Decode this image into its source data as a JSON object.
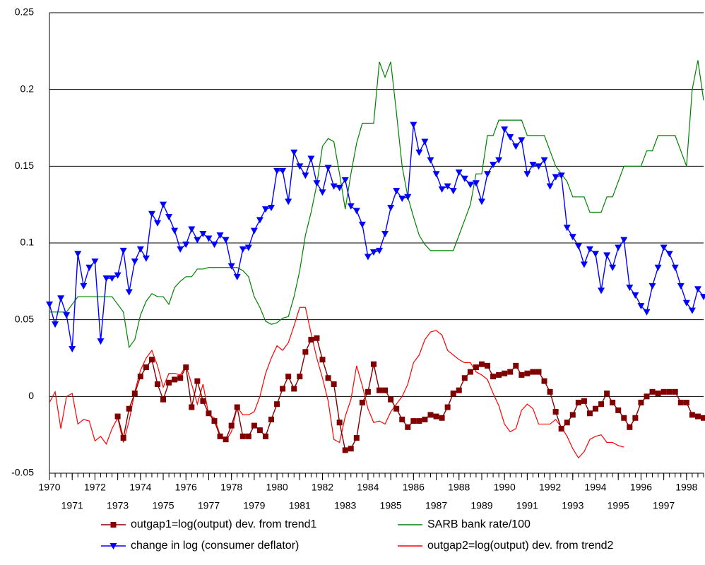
{
  "chart_data": {
    "type": "line",
    "x": [
      1970,
      1970.25,
      1970.5,
      1970.75,
      1971,
      1971.25,
      1971.5,
      1971.75,
      1972,
      1972.25,
      1972.5,
      1972.75,
      1973,
      1973.25,
      1973.5,
      1973.75,
      1974,
      1974.25,
      1974.5,
      1974.75,
      1975,
      1975.25,
      1975.5,
      1975.75,
      1976,
      1976.25,
      1976.5,
      1976.75,
      1977,
      1977.25,
      1977.5,
      1977.75,
      1978,
      1978.25,
      1978.5,
      1978.75,
      1979,
      1979.25,
      1979.5,
      1979.75,
      1980,
      1980.25,
      1980.5,
      1980.75,
      1981,
      1981.25,
      1981.5,
      1981.75,
      1982,
      1982.25,
      1982.5,
      1982.75,
      1983,
      1983.25,
      1983.5,
      1983.75,
      1984,
      1984.25,
      1984.5,
      1984.75,
      1985,
      1985.25,
      1985.5,
      1985.75,
      1986,
      1986.25,
      1986.5,
      1986.75,
      1987,
      1987.25,
      1987.5,
      1987.75,
      1988,
      1988.25,
      1988.5,
      1988.75,
      1989,
      1989.25,
      1989.5,
      1989.75,
      1990,
      1990.25,
      1990.5,
      1990.75,
      1991,
      1991.25,
      1991.5,
      1991.75,
      1992,
      1992.25,
      1992.5,
      1992.75,
      1993,
      1993.25,
      1993.5,
      1993.75,
      1994,
      1994.25,
      1994.5,
      1994.75,
      1995,
      1995.25,
      1995.5,
      1995.75,
      1996,
      1996.25,
      1996.5,
      1996.75,
      1997,
      1997.25,
      1997.5,
      1997.75,
      1998,
      1998.25,
      1998.5,
      1998.75
    ],
    "xlim": [
      1970,
      1998.75
    ],
    "xticks": [
      1970,
      1971,
      1972,
      1973,
      1974,
      1975,
      1976,
      1977,
      1978,
      1979,
      1980,
      1981,
      1982,
      1983,
      1984,
      1985,
      1986,
      1987,
      1988,
      1989,
      1990,
      1991,
      1992,
      1993,
      1994,
      1995,
      1996,
      1997,
      1998
    ],
    "ylim": [
      -0.05,
      0.25
    ],
    "yticks": [
      -0.05,
      0,
      0.05,
      0.1,
      0.15,
      0.2,
      0.25
    ],
    "grid": true,
    "series": [
      {
        "name": "outgap1=log(output) dev. from trend1",
        "color": "#800000",
        "marker": "square",
        "values": [
          null,
          null,
          null,
          null,
          null,
          null,
          null,
          null,
          null,
          null,
          null,
          null,
          -0.013,
          -0.027,
          -0.008,
          0.002,
          0.013,
          0.019,
          0.024,
          0.008,
          -0.002,
          0.009,
          0.011,
          0.012,
          0.019,
          -0.007,
          0.01,
          -0.003,
          -0.011,
          -0.016,
          -0.026,
          -0.028,
          -0.019,
          -0.007,
          -0.026,
          -0.026,
          -0.019,
          -0.022,
          -0.026,
          -0.015,
          -0.005,
          0.005,
          0.013,
          0.005,
          0.013,
          0.029,
          0.037,
          0.038,
          0.024,
          0.012,
          0.008,
          -0.017,
          -0.035,
          -0.034,
          -0.027,
          -0.004,
          0.003,
          0.021,
          0.004,
          0.004,
          -0.002,
          -0.008,
          -0.015,
          -0.02,
          -0.016,
          -0.016,
          -0.015,
          -0.012,
          -0.013,
          -0.014,
          -0.007,
          0.002,
          0.004,
          0.012,
          0.016,
          0.019,
          0.021,
          0.02,
          0.013,
          0.014,
          0.015,
          0.016,
          0.02,
          0.014,
          0.015,
          0.016,
          0.016,
          0.01,
          0.003,
          -0.01,
          -0.021,
          -0.017,
          -0.012,
          -0.004,
          -0.003,
          -0.011,
          -0.008,
          -0.005,
          0.002,
          -0.004,
          -0.009,
          -0.014,
          -0.02,
          -0.014,
          -0.004,
          0,
          0.003,
          0.002,
          0.003,
          0.003,
          0.003,
          -0.004,
          -0.004,
          -0.012,
          -0.013,
          -0.014
        ]
      },
      {
        "name": "SARB bank rate/100",
        "color": "#008000",
        "marker": "none",
        "values": [
          0.055,
          0.055,
          0.055,
          0.055,
          0.06,
          0.065,
          0.065,
          0.065,
          0.065,
          0.065,
          0.065,
          0.065,
          0.06,
          0.055,
          0.032,
          0.037,
          0.053,
          0.062,
          0.067,
          0.065,
          0.065,
          0.06,
          0.071,
          0.075,
          0.078,
          0.078,
          0.083,
          0.083,
          0.084,
          0.084,
          0.084,
          0.084,
          0.084,
          0.084,
          0.082,
          0.078,
          0.065,
          0.058,
          0.049,
          0.047,
          0.048,
          0.051,
          0.052,
          0.065,
          0.082,
          0.105,
          0.12,
          0.138,
          0.163,
          0.168,
          0.166,
          0.145,
          0.122,
          0.145,
          0.165,
          0.178,
          0.178,
          0.178,
          0.218,
          0.208,
          0.218,
          0.185,
          0.15,
          0.13,
          0.117,
          0.105,
          0.099,
          0.095,
          0.095,
          0.095,
          0.095,
          0.095,
          0.105,
          0.115,
          0.125,
          0.145,
          0.145,
          0.17,
          0.17,
          0.18,
          0.18,
          0.18,
          0.18,
          0.18,
          0.17,
          0.17,
          0.17,
          0.17,
          0.16,
          0.15,
          0.145,
          0.14,
          0.13,
          0.13,
          0.13,
          0.12,
          0.12,
          0.12,
          0.13,
          0.13,
          0.14,
          0.15,
          0.15,
          0.15,
          0.15,
          0.16,
          0.16,
          0.17,
          0.17,
          0.17,
          0.17,
          0.16,
          0.15,
          0.2,
          0.219,
          0.193
        ]
      },
      {
        "name": "change in log (consumer deflator)",
        "color": "#0000ff",
        "marker": "triangle-down",
        "values": [
          0.06,
          0.047,
          0.064,
          0.053,
          0.031,
          0.093,
          0.072,
          0.084,
          0.088,
          0.036,
          0.077,
          0.077,
          0.079,
          0.095,
          0.068,
          0.088,
          0.096,
          0.09,
          0.119,
          0.113,
          0.125,
          0.117,
          0.108,
          0.096,
          0.099,
          0.109,
          0.102,
          0.106,
          0.103,
          0.099,
          0.105,
          0.102,
          0.085,
          0.078,
          0.096,
          0.097,
          0.108,
          0.115,
          0.122,
          0.123,
          0.147,
          0.147,
          0.127,
          0.159,
          0.15,
          0.144,
          0.155,
          0.139,
          0.133,
          0.149,
          0.137,
          0.136,
          0.141,
          0.124,
          0.121,
          0.112,
          0.091,
          0.094,
          0.095,
          0.106,
          0.123,
          0.134,
          0.129,
          0.13,
          0.177,
          0.159,
          0.166,
          0.154,
          0.145,
          0.135,
          0.137,
          0.134,
          0.146,
          0.142,
          0.138,
          0.139,
          0.127,
          0.145,
          0.151,
          0.154,
          0.174,
          0.169,
          0.163,
          0.167,
          0.145,
          0.151,
          0.15,
          0.154,
          0.137,
          0.143,
          0.144,
          0.11,
          0.104,
          0.098,
          0.086,
          0.096,
          0.093,
          0.069,
          0.092,
          0.084,
          0.097,
          0.102,
          0.071,
          0.066,
          0.059,
          0.055,
          0.072,
          0.084,
          0.097,
          0.093,
          0.084,
          0.072,
          0.061,
          0.056,
          0.07,
          0.065
        ]
      },
      {
        "name": "outgap2=log(output) dev. from trend2",
        "color": "#ff0000",
        "marker": "none",
        "values": [
          -0.004,
          0.003,
          -0.021,
          0.0,
          0.002,
          -0.018,
          -0.015,
          -0.016,
          -0.029,
          -0.026,
          -0.031,
          -0.021,
          -0.014,
          -0.03,
          -0.016,
          0.003,
          0.017,
          0.025,
          0.03,
          0.02,
          0.006,
          0.015,
          0.015,
          0.014,
          0.02,
          0.008,
          -0.005,
          0.008,
          -0.012,
          -0.014,
          -0.025,
          -0.029,
          -0.023,
          -0.007,
          -0.012,
          -0.012,
          -0.01,
          0.0,
          0.015,
          0.025,
          0.033,
          0.03,
          0.035,
          0.046,
          0.058,
          0.058,
          0.041,
          0.025,
          0.012,
          -0.003,
          -0.028,
          -0.03,
          -0.013,
          -0.002,
          0.02,
          0.007,
          -0.008,
          -0.017,
          -0.016,
          -0.018,
          -0.01,
          -0.005,
          0.0,
          0.008,
          0.022,
          0.027,
          0.037,
          0.042,
          0.043,
          0.04,
          0.03,
          0.027,
          0.024,
          0.022,
          0.022,
          0.016,
          0.014,
          0.011,
          0.002,
          -0.006,
          -0.018,
          -0.023,
          -0.021,
          -0.009,
          -0.005,
          -0.008,
          -0.018,
          -0.018,
          -0.018,
          -0.015,
          -0.02,
          -0.026,
          -0.034,
          -0.04,
          -0.036,
          -0.028,
          -0.026,
          -0.025,
          -0.03,
          -0.03,
          -0.032,
          -0.033,
          null,
          null,
          null,
          null,
          null,
          null,
          null,
          null,
          null,
          null,
          null,
          null,
          null,
          null
        ]
      }
    ]
  }
}
